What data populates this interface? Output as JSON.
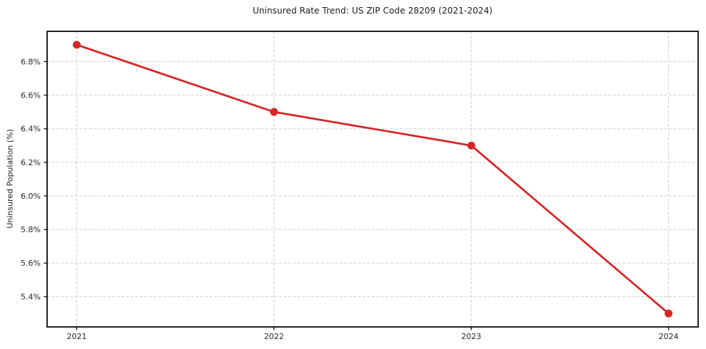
{
  "chart_data": {
    "type": "line",
    "title": "Uninsured Rate Trend: US ZIP Code 28209 (2021-2024)",
    "xlabel": "",
    "ylabel": "Uninsured Population (%)",
    "x": [
      2021,
      2022,
      2023,
      2024
    ],
    "values": [
      6.9,
      6.5,
      6.3,
      5.3
    ],
    "x_tick_labels": [
      "2021",
      "2022",
      "2023",
      "2024"
    ],
    "y_tick_values": [
      5.4,
      5.6,
      5.8,
      6.0,
      6.2,
      6.4,
      6.6,
      6.8
    ],
    "y_tick_labels": [
      "5.4%",
      "5.6%",
      "5.8%",
      "6.0%",
      "6.2%",
      "6.4%",
      "6.6%",
      "6.8%"
    ],
    "xlim": [
      2020.85,
      2024.15
    ],
    "ylim": [
      5.22,
      6.98
    ],
    "grid": true,
    "grid_style": "dashed",
    "legend": "none",
    "colors": {
      "line": "#d62728",
      "marker": "#d62728",
      "grid": "#cfcfcf",
      "frame": "#0a0a0a",
      "background": "#ffffff",
      "text": "#1a1a1a"
    }
  }
}
